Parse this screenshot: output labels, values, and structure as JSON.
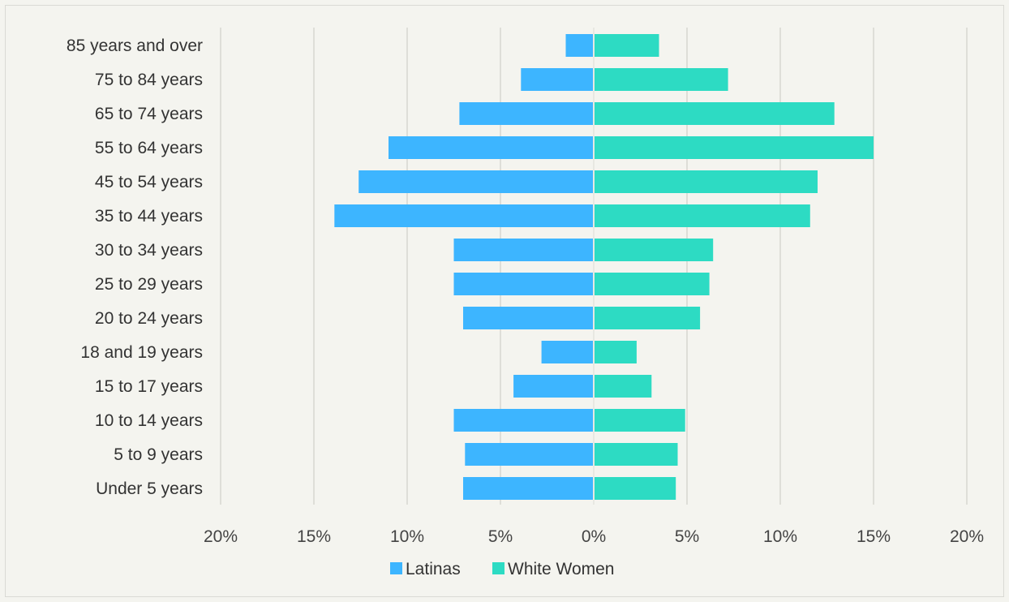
{
  "chart_data": {
    "type": "bar",
    "orientation": "horizontal",
    "layout": "population-pyramid",
    "categories": [
      "85 years and over",
      "75 to 84 years",
      "65 to 74 years",
      "55 to 64 years",
      "45 to 54 years",
      "35 to 44 years",
      "30 to 34 years",
      "25 to 29 years",
      "20 to 24 years",
      "18 and 19 years",
      "15 to 17 years",
      "10 to 14 years",
      "5 to 9 years",
      "Under 5 years"
    ],
    "series": [
      {
        "name": "Latinas",
        "color": "#3db5ff",
        "direction": "left",
        "values": [
          1.5,
          3.9,
          7.2,
          11.0,
          12.6,
          13.9,
          7.5,
          7.5,
          7.0,
          2.8,
          4.3,
          7.5,
          6.9,
          7.0
        ]
      },
      {
        "name": "White Women",
        "color": "#2ddbc3",
        "direction": "right",
        "values": [
          3.5,
          7.2,
          12.9,
          15.0,
          12.0,
          11.6,
          6.4,
          6.2,
          5.7,
          2.3,
          3.1,
          4.9,
          4.5,
          4.4
        ]
      }
    ],
    "xlim": [
      -20,
      20
    ],
    "x_ticks": [
      "20%",
      "15%",
      "10%",
      "5%",
      "0%",
      "5%",
      "10%",
      "15%",
      "20%"
    ],
    "grid": "vertical",
    "legend": "bottom-center",
    "title": "",
    "xlabel": "",
    "ylabel": ""
  },
  "colors": {
    "background": "#f4f4ef",
    "grid": "#d6d6d0",
    "text": "#333333"
  }
}
